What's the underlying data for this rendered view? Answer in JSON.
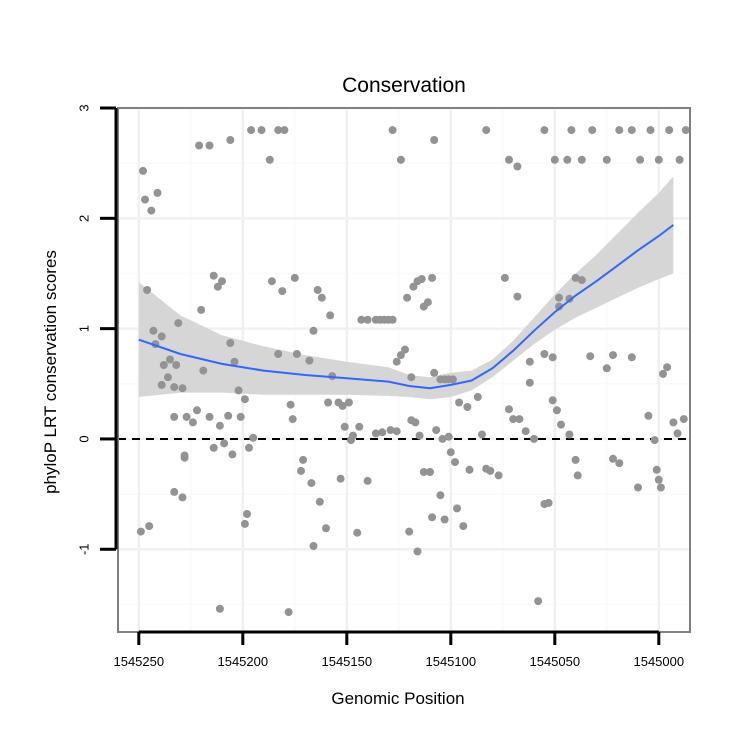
{
  "chart_data": {
    "type": "scatter",
    "title": "Conservation",
    "xlabel": "Genomic Position",
    "ylabel": "phyloP LRT conservation scores",
    "x_reversed": true,
    "xlim": [
      1545260,
      1544985
    ],
    "ylim": [
      -1.75,
      3.0
    ],
    "x_ticks": [
      1545250,
      1545200,
      1545150,
      1545100,
      1545050,
      1545000
    ],
    "x_tick_labels": [
      "1545250",
      "1545200",
      "1545150",
      "1545100",
      "1545050",
      "1545000"
    ],
    "y_ticks": [
      -1,
      0,
      1,
      2,
      3
    ],
    "y_tick_labels": [
      "-1",
      "0",
      "1",
      "2",
      "3"
    ],
    "grid": true,
    "reference_line": {
      "y": 0,
      "style": "dashed",
      "color": "#000000"
    },
    "colors": {
      "points": "#939393",
      "smooth": "#3366ff",
      "ribbon": "#d6d6d6",
      "border": "#808080"
    },
    "series": [
      {
        "type": "points",
        "points": [
          [
            1545248,
            2.43
          ],
          [
            1545247,
            2.17
          ],
          [
            1545244,
            2.07
          ],
          [
            1545241,
            2.23
          ],
          [
            1545246,
            1.35
          ],
          [
            1545243,
            0.98
          ],
          [
            1545239,
            0.93
          ],
          [
            1545242,
            0.86
          ],
          [
            1545238,
            0.67
          ],
          [
            1545235,
            0.72
          ],
          [
            1545232,
            0.67
          ],
          [
            1545239,
            0.49
          ],
          [
            1545236,
            0.56
          ],
          [
            1545233,
            0.47
          ],
          [
            1545231,
            1.05
          ],
          [
            1545229,
            0.46
          ],
          [
            1545233,
            0.2
          ],
          [
            1545227,
            0.2
          ],
          [
            1545224,
            0.15
          ],
          [
            1545228,
            -0.17
          ],
          [
            1545228,
            -0.15
          ],
          [
            1545233,
            -0.48
          ],
          [
            1545229,
            -0.53
          ],
          [
            1545249,
            -0.84
          ],
          [
            1545245,
            -0.79
          ],
          [
            1545222,
            0.26
          ],
          [
            1545219,
            0.62
          ],
          [
            1545216,
            0.2
          ],
          [
            1545214,
            -0.08
          ],
          [
            1545211,
            0.12
          ],
          [
            1545209,
            -0.04
          ],
          [
            1545207,
            0.21
          ],
          [
            1545205,
            -0.14
          ],
          [
            1545214,
            1.48
          ],
          [
            1545212,
            1.38
          ],
          [
            1545210,
            1.43
          ],
          [
            1545220,
            1.17
          ],
          [
            1545206,
            0.87
          ],
          [
            1545204,
            0.7
          ],
          [
            1545202,
            0.44
          ],
          [
            1545201,
            0.2
          ],
          [
            1545199,
            0.36
          ],
          [
            1545197,
            -0.08
          ],
          [
            1545195,
            0.01
          ],
          [
            1545198,
            -0.68
          ],
          [
            1545199,
            -0.77
          ],
          [
            1545211,
            -1.54
          ],
          [
            1545221,
            2.66
          ],
          [
            1545216,
            2.66
          ],
          [
            1545206,
            2.71
          ],
          [
            1545196,
            2.8
          ],
          [
            1545191,
            2.8
          ],
          [
            1545187,
            2.53
          ],
          [
            1545183,
            2.8
          ],
          [
            1545180,
            2.8
          ],
          [
            1545186,
            1.43
          ],
          [
            1545181,
            1.34
          ],
          [
            1545175,
            1.46
          ],
          [
            1545183,
            0.77
          ],
          [
            1545174,
            0.77
          ],
          [
            1545168,
            0.71
          ],
          [
            1545166,
            0.98
          ],
          [
            1545164,
            1.35
          ],
          [
            1545162,
            1.28
          ],
          [
            1545159,
            0.33
          ],
          [
            1545158,
            1.12
          ],
          [
            1545157,
            0.57
          ],
          [
            1545154,
            0.33
          ],
          [
            1545152,
            0.3
          ],
          [
            1545149,
            0.33
          ],
          [
            1545151,
            0.11
          ],
          [
            1545147,
            0.03
          ],
          [
            1545144,
            0.11
          ],
          [
            1545176,
            0.18
          ],
          [
            1545177,
            0.31
          ],
          [
            1545171,
            -0.19
          ],
          [
            1545172,
            -0.29
          ],
          [
            1545167,
            -0.4
          ],
          [
            1545163,
            -0.57
          ],
          [
            1545160,
            -0.81
          ],
          [
            1545166,
            -0.97
          ],
          [
            1545178,
            -1.57
          ],
          [
            1545145,
            -0.85
          ],
          [
            1545140,
            -0.38
          ],
          [
            1545153,
            -0.36
          ],
          [
            1545148,
            -0.01
          ],
          [
            1545143,
            1.08
          ],
          [
            1545140,
            1.08
          ],
          [
            1545136,
            1.08
          ],
          [
            1545134,
            1.08
          ],
          [
            1545132,
            1.08
          ],
          [
            1545130,
            1.08
          ],
          [
            1545128,
            1.08
          ],
          [
            1545126,
            0.7
          ],
          [
            1545124,
            0.76
          ],
          [
            1545122,
            0.81
          ],
          [
            1545119,
            0.56
          ],
          [
            1545121,
            1.28
          ],
          [
            1545118,
            1.38
          ],
          [
            1545116,
            1.43
          ],
          [
            1545114,
            1.45
          ],
          [
            1545109,
            1.46
          ],
          [
            1545111,
            1.24
          ],
          [
            1545113,
            1.2
          ],
          [
            1545108,
            0.6
          ],
          [
            1545105,
            0.54
          ],
          [
            1545103,
            0.54
          ],
          [
            1545101,
            0.54
          ],
          [
            1545099,
            0.54
          ],
          [
            1545133,
            0.06
          ],
          [
            1545129,
            0.08
          ],
          [
            1545136,
            0.05
          ],
          [
            1545126,
            0.07
          ],
          [
            1545119,
            0.17
          ],
          [
            1545117,
            0.15
          ],
          [
            1545115,
            0.03
          ],
          [
            1545113,
            -0.3
          ],
          [
            1545110,
            -0.3
          ],
          [
            1545107,
            0.08
          ],
          [
            1545104,
            0.0
          ],
          [
            1545101,
            0.02
          ],
          [
            1545096,
            0.33
          ],
          [
            1545092,
            0.29
          ],
          [
            1545087,
            0.38
          ],
          [
            1545085,
            0.04
          ],
          [
            1545083,
            -0.27
          ],
          [
            1545081,
            -0.29
          ],
          [
            1545077,
            -0.33
          ],
          [
            1545072,
            0.27
          ],
          [
            1545070,
            0.18
          ],
          [
            1545067,
            0.18
          ],
          [
            1545064,
            0.07
          ],
          [
            1545062,
            0.51
          ],
          [
            1545062,
            0.7
          ],
          [
            1545060,
            0.0
          ],
          [
            1545074,
            1.46
          ],
          [
            1545068,
            1.29
          ],
          [
            1545055,
            0.77
          ],
          [
            1545051,
            0.74
          ],
          [
            1545048,
            1.28
          ],
          [
            1545043,
            1.27
          ],
          [
            1545048,
            1.2
          ],
          [
            1545051,
            0.35
          ],
          [
            1545049,
            0.26
          ],
          [
            1545047,
            0.13
          ],
          [
            1545043,
            0.04
          ],
          [
            1545040,
            -0.19
          ],
          [
            1545039,
            -0.33
          ],
          [
            1545055,
            -0.59
          ],
          [
            1545053,
            -0.58
          ],
          [
            1545058,
            -1.47
          ],
          [
            1545040,
            1.46
          ],
          [
            1545037,
            1.44
          ],
          [
            1545033,
            0.75
          ],
          [
            1545022,
            0.76
          ],
          [
            1545025,
            0.64
          ],
          [
            1545013,
            0.74
          ],
          [
            1545022,
            -0.18
          ],
          [
            1545019,
            -0.22
          ],
          [
            1545010,
            -0.44
          ],
          [
            1545005,
            0.21
          ],
          [
            1545002,
            -0.01
          ],
          [
            1544998,
            0.59
          ],
          [
            1544996,
            0.65
          ],
          [
            1544993,
            0.15
          ],
          [
            1544991,
            0.05
          ],
          [
            1544988,
            0.18
          ],
          [
            1545001,
            -0.28
          ],
          [
            1545000,
            -0.37
          ],
          [
            1544999,
            -0.44
          ],
          [
            1545120,
            -0.84
          ],
          [
            1545116,
            -1.02
          ],
          [
            1545109,
            -0.71
          ],
          [
            1545105,
            -0.51
          ],
          [
            1545103,
            -0.73
          ],
          [
            1545097,
            -0.63
          ],
          [
            1545094,
            -0.79
          ],
          [
            1545098,
            -0.21
          ],
          [
            1545100,
            -0.12
          ],
          [
            1545091,
            -0.28
          ],
          [
            1545128,
            2.8
          ],
          [
            1545124,
            2.53
          ],
          [
            1545108,
            2.71
          ],
          [
            1545083,
            2.8
          ],
          [
            1545072,
            2.53
          ],
          [
            1545068,
            2.47
          ],
          [
            1545055,
            2.8
          ],
          [
            1545050,
            2.53
          ],
          [
            1545044,
            2.53
          ],
          [
            1545042,
            2.8
          ],
          [
            1545037,
            2.53
          ],
          [
            1545032,
            2.8
          ],
          [
            1545025,
            2.53
          ],
          [
            1545019,
            2.8
          ],
          [
            1545013,
            2.8
          ],
          [
            1545009,
            2.53
          ],
          [
            1545004,
            2.8
          ],
          [
            1545000,
            2.53
          ],
          [
            1544995,
            2.8
          ],
          [
            1544990,
            2.53
          ],
          [
            1544987,
            2.8
          ]
        ]
      },
      {
        "type": "loess",
        "x": [
          1545250,
          1545230,
          1545210,
          1545190,
          1545170,
          1545150,
          1545130,
          1545120,
          1545110,
          1545100,
          1545090,
          1545080,
          1545070,
          1545060,
          1545050,
          1545040,
          1545030,
          1545020,
          1545010,
          1545000,
          1544993
        ],
        "y": [
          0.9,
          0.77,
          0.68,
          0.62,
          0.58,
          0.55,
          0.52,
          0.48,
          0.46,
          0.49,
          0.53,
          0.64,
          0.8,
          0.98,
          1.15,
          1.3,
          1.43,
          1.57,
          1.71,
          1.84,
          1.94
        ],
        "lower": [
          0.38,
          0.42,
          0.42,
          0.4,
          0.4,
          0.4,
          0.39,
          0.38,
          0.36,
          0.38,
          0.44,
          0.56,
          0.71,
          0.86,
          0.99,
          1.1,
          1.19,
          1.28,
          1.37,
          1.45,
          1.5
        ],
        "upper": [
          1.42,
          1.12,
          0.94,
          0.84,
          0.76,
          0.7,
          0.65,
          0.58,
          0.56,
          0.6,
          0.62,
          0.72,
          0.89,
          1.1,
          1.31,
          1.5,
          1.67,
          1.86,
          2.05,
          2.23,
          2.38
        ]
      }
    ]
  }
}
